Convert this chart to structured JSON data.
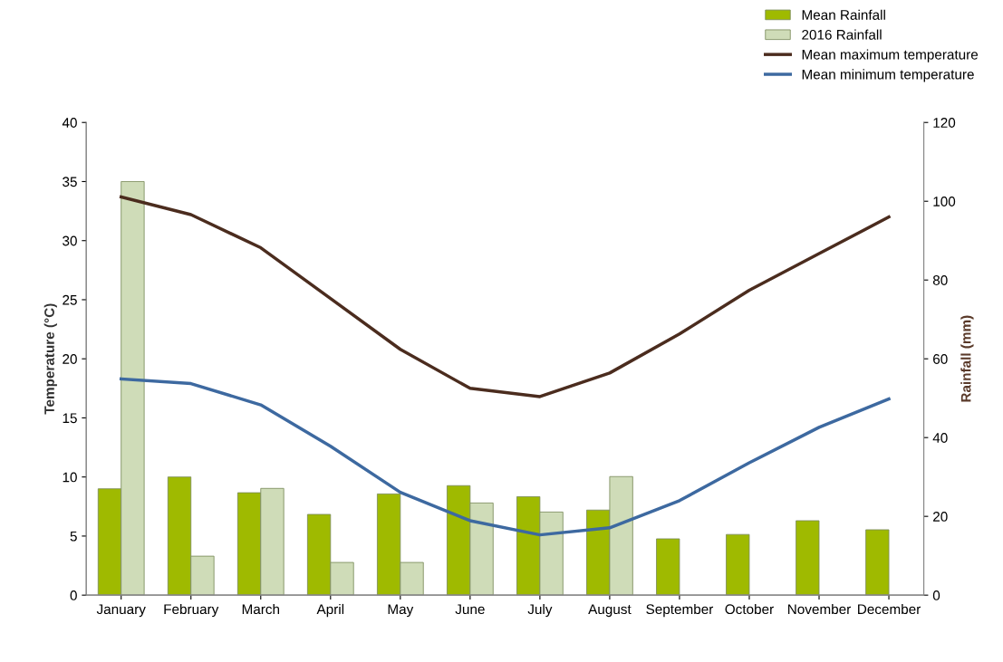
{
  "chart_data": {
    "type": "bar",
    "categories": [
      "January",
      "February",
      "March",
      "April",
      "May",
      "June",
      "July",
      "August",
      "September",
      "October",
      "November",
      "December"
    ],
    "ylabel": "Temperature (°C)",
    "y2label": "Rainfall (mm)",
    "ylim": [
      0,
      40
    ],
    "yticks": [
      0,
      5,
      10,
      15,
      20,
      25,
      30,
      35,
      40
    ],
    "y2lim": [
      0,
      120
    ],
    "y2ticks": [
      0,
      20,
      40,
      60,
      80,
      100,
      120
    ],
    "grid": false,
    "legend": "top right",
    "series": [
      {
        "name": "Mean Rainfall",
        "axis": "y2",
        "color": "#9fba00",
        "values": [
          27,
          30,
          26,
          20.5,
          25.7,
          27.8,
          25,
          21.6,
          14.3,
          15.4,
          18.9,
          16.6
        ]
      },
      {
        "name": "2016 Rainfall",
        "axis": "y2",
        "color": "#cfdcb8",
        "values": [
          105,
          9.9,
          27.1,
          8.3,
          8.3,
          23.4,
          21.1,
          30.1,
          null,
          null,
          null,
          null
        ]
      },
      {
        "name": "Mean maximum temperature",
        "type": "line",
        "axis": "y",
        "color": "#4b2c1e",
        "values": [
          33.7,
          32.2,
          29.4,
          25.1,
          20.8,
          17.5,
          16.8,
          18.8,
          22.1,
          25.8,
          28.9,
          32.0
        ]
      },
      {
        "name": "Mean minimum temperature",
        "type": "line",
        "axis": "y",
        "color": "#3d69a0",
        "values": [
          18.3,
          17.9,
          16.1,
          12.6,
          8.7,
          6.3,
          5.1,
          5.7,
          8.0,
          11.2,
          14.2,
          16.6
        ]
      }
    ]
  }
}
